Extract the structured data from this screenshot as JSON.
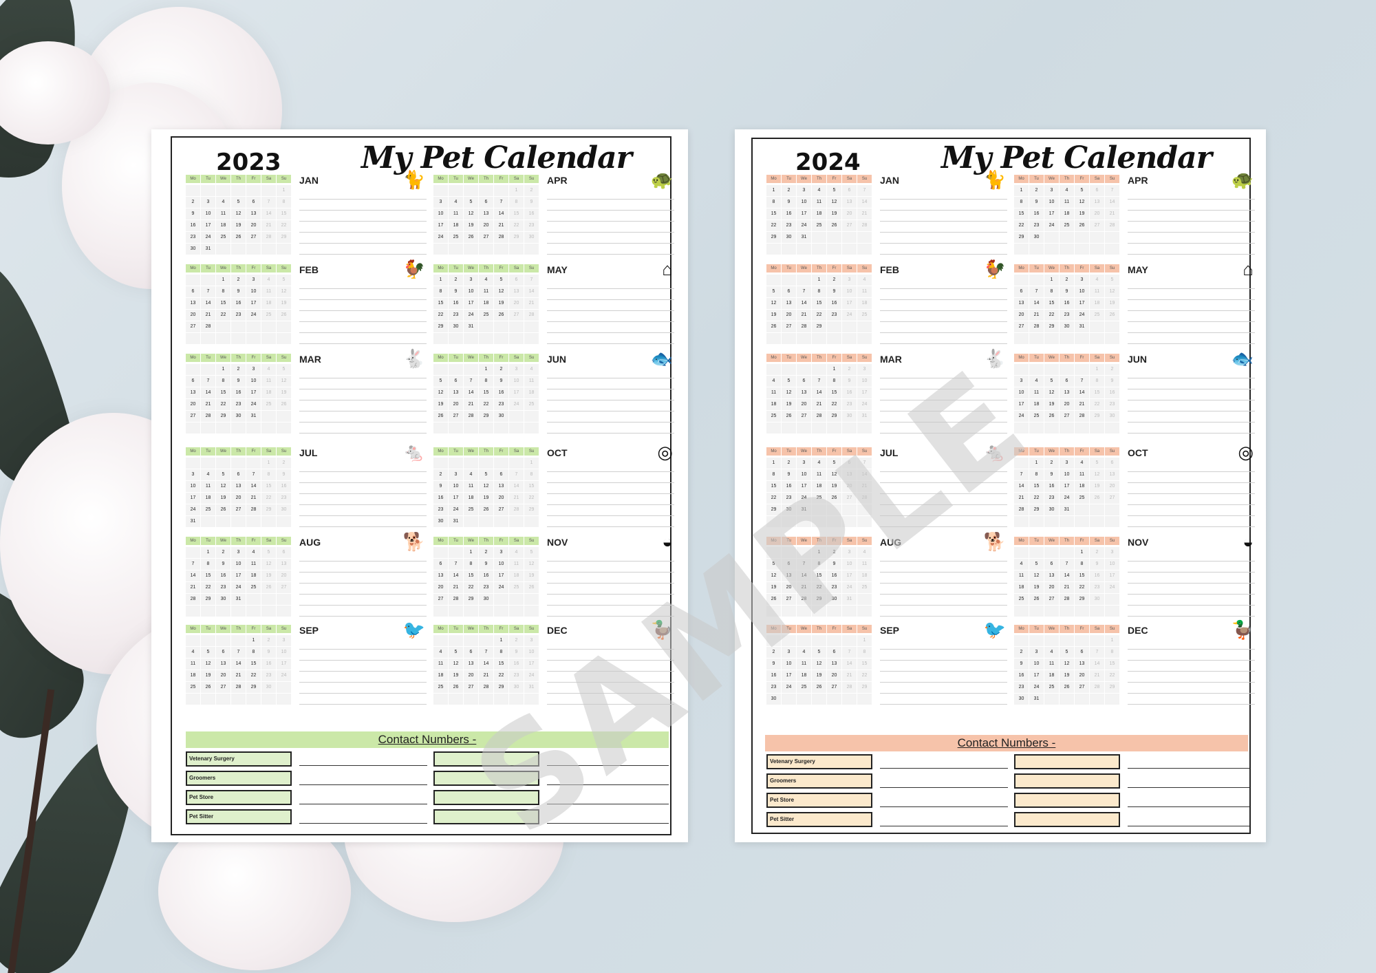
{
  "watermark": "SAMPLE",
  "colors": {
    "green_accent": "#cbe8a8",
    "green_box": "#dff0cc",
    "peach_accent": "#f6c3aa",
    "peach_box": "#fbe9cc"
  },
  "weekday_headers": [
    "Mo",
    "Tu",
    "We",
    "Th",
    "Fr",
    "Sa",
    "Su"
  ],
  "contact_labels": [
    "Vetenary Surgery",
    "Groomers",
    "Pet Store",
    "Pet Sitter"
  ],
  "sheets": [
    {
      "year": "2023",
      "title": "My Pet Calendar",
      "contact_title": "Contact Numbers -",
      "theme": "green",
      "months": [
        {
          "name": "JAN",
          "icon": "cat-icon",
          "offset": 6,
          "days": 31
        },
        {
          "name": "APR",
          "icon": "turtle-icon",
          "offset": 5,
          "days": 30
        },
        {
          "name": "FEB",
          "icon": "hen-icon",
          "offset": 2,
          "days": 28
        },
        {
          "name": "MAY",
          "icon": "pet-house-icon",
          "offset": 0,
          "days": 31
        },
        {
          "name": "MAR",
          "icon": "rabbit-icon",
          "offset": 2,
          "days": 31
        },
        {
          "name": "JUN",
          "icon": "fish-bowl-icon",
          "offset": 3,
          "days": 30
        },
        {
          "name": "JUL",
          "icon": "mouse-icon",
          "offset": 5,
          "days": 31
        },
        {
          "name": "OCT",
          "icon": "hamster-wheel-icon",
          "offset": 6,
          "days": 31
        },
        {
          "name": "AUG",
          "icon": "dog-icon",
          "offset": 1,
          "days": 31
        },
        {
          "name": "NOV",
          "icon": "pet-bowl-icon",
          "offset": 2,
          "days": 30
        },
        {
          "name": "SEP",
          "icon": "parrot-icon",
          "offset": 4,
          "days": 30
        },
        {
          "name": "DEC",
          "icon": "duck-icon",
          "offset": 4,
          "days": 31
        }
      ]
    },
    {
      "year": "2024",
      "title": "My Pet Calendar",
      "contact_title": "Contact Numbers -",
      "theme": "peach",
      "months": [
        {
          "name": "JAN",
          "icon": "cat-icon",
          "offset": 0,
          "days": 31
        },
        {
          "name": "APR",
          "icon": "turtle-icon",
          "offset": 0,
          "days": 30
        },
        {
          "name": "FEB",
          "icon": "hen-icon",
          "offset": 3,
          "days": 29
        },
        {
          "name": "MAY",
          "icon": "pet-house-icon",
          "offset": 2,
          "days": 31
        },
        {
          "name": "MAR",
          "icon": "rabbit-icon",
          "offset": 4,
          "days": 31
        },
        {
          "name": "JUN",
          "icon": "fish-bowl-icon",
          "offset": 5,
          "days": 30
        },
        {
          "name": "JUL",
          "icon": "mouse-icon",
          "offset": 0,
          "days": 31
        },
        {
          "name": "OCT",
          "icon": "hamster-wheel-icon",
          "offset": 1,
          "days": 31
        },
        {
          "name": "AUG",
          "icon": "dog-icon",
          "offset": 3,
          "days": 31
        },
        {
          "name": "NOV",
          "icon": "pet-bowl-icon",
          "offset": 4,
          "days": 30
        },
        {
          "name": "SEP",
          "icon": "parrot-icon",
          "offset": 6,
          "days": 30
        },
        {
          "name": "DEC",
          "icon": "duck-icon",
          "offset": 6,
          "days": 31
        }
      ]
    }
  ]
}
